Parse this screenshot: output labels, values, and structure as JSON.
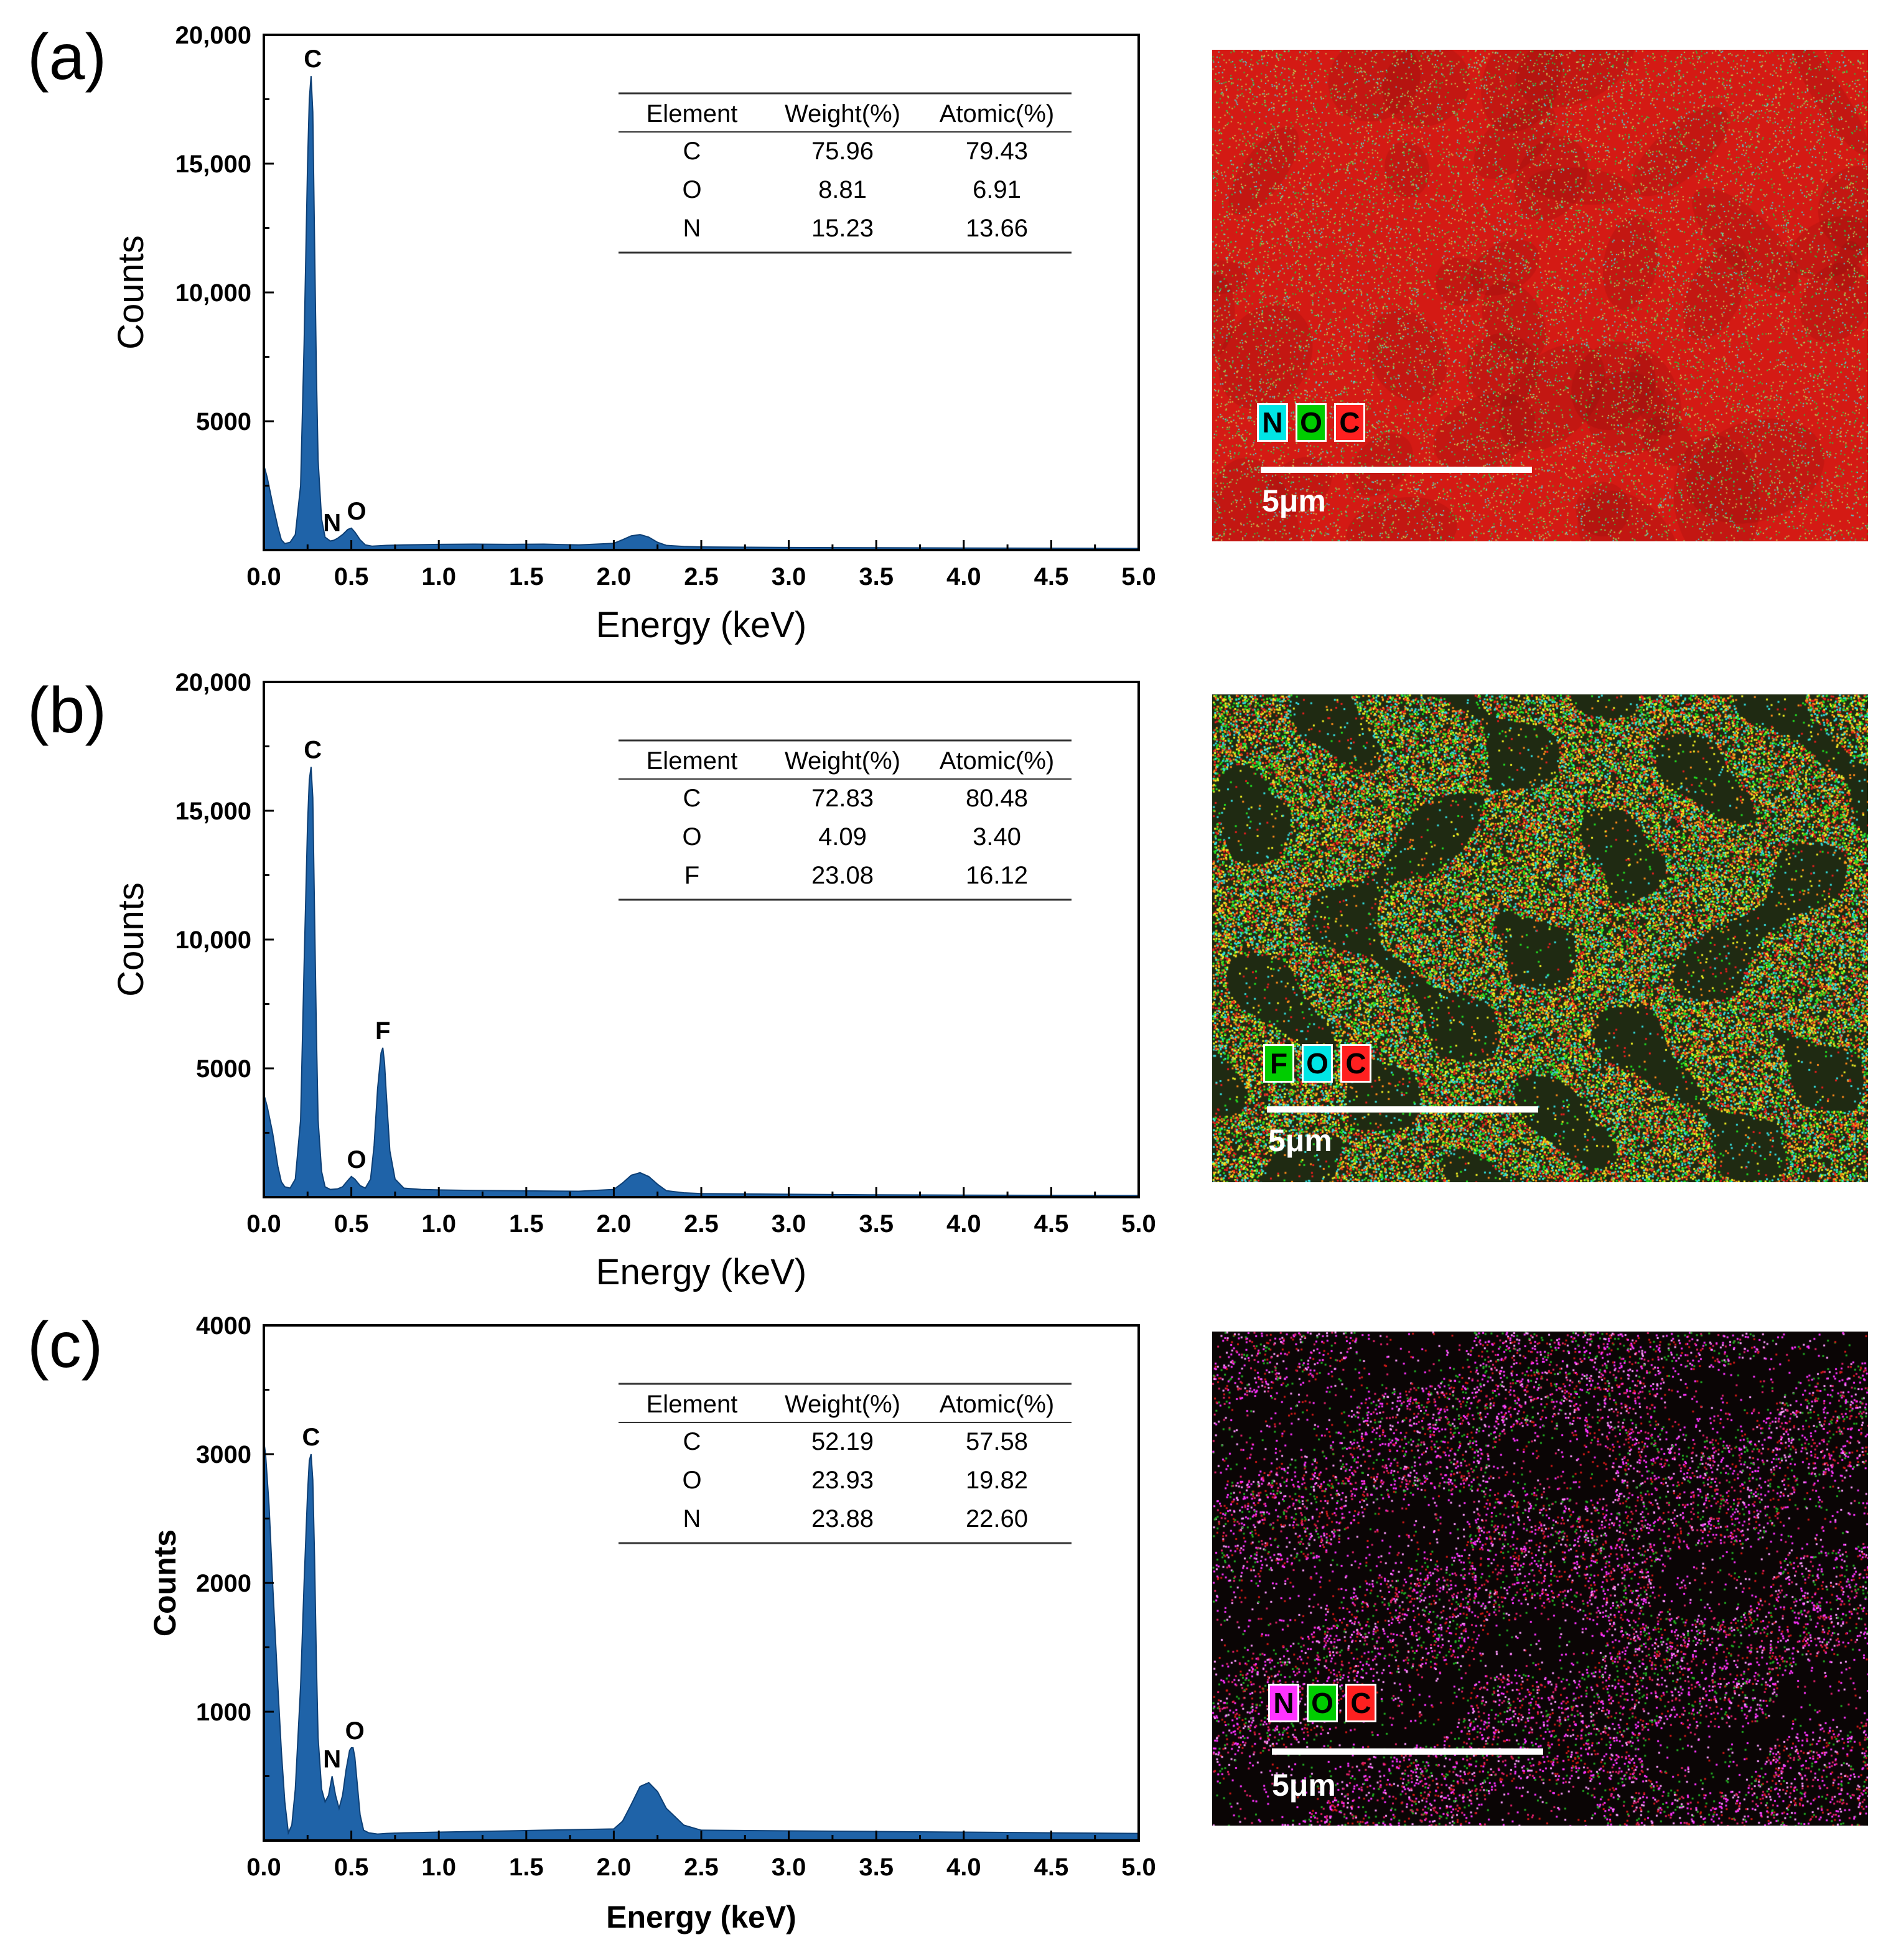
{
  "panels": [
    {
      "label": "(a)",
      "table": {
        "headers": [
          "Element",
          "Weight(%)",
          "Atomic(%)"
        ],
        "rows": [
          [
            "C",
            "75.96",
            "79.43"
          ],
          [
            "O",
            "8.81",
            "6.91"
          ],
          [
            "N",
            "15.23",
            "13.66"
          ]
        ]
      },
      "map": {
        "legend": [
          {
            "text": "N",
            "color": "#00e5e5"
          },
          {
            "text": "O",
            "color": "#00cc00"
          },
          {
            "text": "C",
            "color": "#ff2020"
          }
        ],
        "scale_label": "5μm",
        "style": "dense-red"
      }
    },
    {
      "label": "(b)",
      "table": {
        "headers": [
          "Element",
          "Weight(%)",
          "Atomic(%)"
        ],
        "rows": [
          [
            "C",
            "72.83",
            "80.48"
          ],
          [
            "O",
            "4.09",
            "3.40"
          ],
          [
            "F",
            "23.08",
            "16.12"
          ]
        ]
      },
      "map": {
        "legend": [
          {
            "text": "F",
            "color": "#00cc00"
          },
          {
            "text": "O",
            "color": "#00e5e5"
          },
          {
            "text": "C",
            "color": "#ff2020"
          }
        ],
        "scale_label": "5μm",
        "style": "porous-multicolor"
      }
    },
    {
      "label": "(c)",
      "table": {
        "headers": [
          "Element",
          "Weight(%)",
          "Atomic(%)"
        ],
        "rows": [
          [
            "C",
            "52.19",
            "57.58"
          ],
          [
            "O",
            "23.93",
            "19.82"
          ],
          [
            "N",
            "23.88",
            "22.60"
          ]
        ]
      },
      "map": {
        "legend": [
          {
            "text": "N",
            "color": "#ff33ff"
          },
          {
            "text": "O",
            "color": "#00cc00"
          },
          {
            "text": "C",
            "color": "#ff2020"
          }
        ],
        "scale_label": "5μm",
        "style": "sparse-magenta"
      }
    }
  ],
  "chart_data": [
    {
      "type": "area",
      "title": "",
      "xlabel": "Energy (keV)",
      "ylabel": "Counts",
      "xlim": [
        0,
        5
      ],
      "ylim": [
        0,
        20000
      ],
      "xticks": [
        "0.0",
        "0.5",
        "1.0",
        "1.5",
        "2.0",
        "2.5",
        "3.0",
        "3.5",
        "4.0",
        "4.5",
        "5.0"
      ],
      "yticks": [
        {
          "value": 5000,
          "label": "5000"
        },
        {
          "value": 10000,
          "label": "10,000"
        },
        {
          "value": 15000,
          "label": "15,000"
        },
        {
          "value": 20000,
          "label": "20,000"
        }
      ],
      "fill_color": "#1f63a8",
      "x": [
        0.0,
        0.02,
        0.05,
        0.08,
        0.1,
        0.12,
        0.15,
        0.18,
        0.21,
        0.23,
        0.25,
        0.26,
        0.27,
        0.28,
        0.29,
        0.3,
        0.31,
        0.33,
        0.35,
        0.38,
        0.4,
        0.42,
        0.45,
        0.48,
        0.5,
        0.52,
        0.55,
        0.58,
        0.62,
        0.7,
        0.8,
        1.0,
        1.2,
        1.4,
        1.6,
        1.8,
        2.0,
        2.05,
        2.1,
        2.15,
        2.2,
        2.25,
        2.3,
        2.4,
        2.5,
        3.0,
        3.5,
        4.0,
        4.5,
        5.0
      ],
      "y": [
        3300,
        2800,
        1800,
        900,
        400,
        250,
        300,
        600,
        2500,
        8000,
        15000,
        17500,
        18400,
        17000,
        12000,
        7000,
        3500,
        1200,
        500,
        350,
        380,
        450,
        600,
        800,
        850,
        700,
        400,
        200,
        150,
        180,
        200,
        220,
        230,
        220,
        230,
        200,
        260,
        400,
        550,
        600,
        500,
        300,
        180,
        140,
        120,
        100,
        90,
        80,
        70,
        60
      ],
      "peak_labels": [
        {
          "text": "C",
          "x": 0.28,
          "y": 18400
        },
        {
          "text": "N",
          "x": 0.39,
          "y": 400
        },
        {
          "text": "O",
          "x": 0.53,
          "y": 850
        }
      ]
    },
    {
      "type": "area",
      "title": "",
      "xlabel": "Energy (keV)",
      "ylabel": "Counts",
      "xlim": [
        0,
        5
      ],
      "ylim": [
        0,
        20000
      ],
      "xticks": [
        "0.0",
        "0.5",
        "1.0",
        "1.5",
        "2.0",
        "2.5",
        "3.0",
        "3.5",
        "4.0",
        "4.5",
        "5.0"
      ],
      "yticks": [
        {
          "value": 5000,
          "label": "5000"
        },
        {
          "value": 10000,
          "label": "10,000"
        },
        {
          "value": 15000,
          "label": "15,000"
        },
        {
          "value": 20000,
          "label": "20,000"
        }
      ],
      "fill_color": "#1f63a8",
      "x": [
        0.0,
        0.02,
        0.05,
        0.08,
        0.1,
        0.12,
        0.15,
        0.18,
        0.21,
        0.23,
        0.25,
        0.26,
        0.27,
        0.28,
        0.29,
        0.3,
        0.31,
        0.33,
        0.35,
        0.38,
        0.42,
        0.45,
        0.48,
        0.5,
        0.52,
        0.55,
        0.58,
        0.61,
        0.63,
        0.65,
        0.67,
        0.68,
        0.69,
        0.7,
        0.72,
        0.75,
        0.8,
        0.9,
        1.0,
        1.2,
        1.4,
        1.6,
        1.8,
        2.0,
        2.05,
        2.1,
        2.15,
        2.2,
        2.25,
        2.3,
        2.4,
        2.5,
        3.0,
        3.5,
        4.0,
        4.5,
        5.0
      ],
      "y": [
        4000,
        3500,
        2500,
        1200,
        600,
        400,
        350,
        700,
        3000,
        9000,
        14500,
        16200,
        16700,
        15500,
        11000,
        6500,
        3000,
        1000,
        400,
        300,
        320,
        400,
        650,
        800,
        700,
        450,
        350,
        700,
        2000,
        4200,
        5600,
        5800,
        5200,
        4000,
        1800,
        700,
        350,
        300,
        280,
        260,
        250,
        240,
        230,
        300,
        550,
        850,
        950,
        800,
        500,
        250,
        170,
        140,
        110,
        90,
        80,
        70,
        60
      ],
      "peak_labels": [
        {
          "text": "C",
          "x": 0.28,
          "y": 16700
        },
        {
          "text": "O",
          "x": 0.53,
          "y": 800
        },
        {
          "text": "F",
          "x": 0.68,
          "y": 5800
        }
      ]
    },
    {
      "type": "area",
      "title": "",
      "xlabel": "Energy (keV)",
      "ylabel": "Counts",
      "xlim": [
        0,
        5
      ],
      "ylim": [
        0,
        4000
      ],
      "xticks": [
        "0.0",
        "0.5",
        "1.0",
        "1.5",
        "2.0",
        "2.5",
        "3.0",
        "3.5",
        "4.0",
        "4.5",
        "5.0"
      ],
      "yticks": [
        {
          "value": 1000,
          "label": "1000"
        },
        {
          "value": 2000,
          "label": "2000"
        },
        {
          "value": 3000,
          "label": "3000"
        },
        {
          "value": 4000,
          "label": "4000"
        }
      ],
      "fill_color": "#1f63a8",
      "x": [
        0.0,
        0.01,
        0.03,
        0.05,
        0.08,
        0.1,
        0.12,
        0.14,
        0.16,
        0.18,
        0.21,
        0.23,
        0.25,
        0.26,
        0.27,
        0.28,
        0.29,
        0.3,
        0.31,
        0.33,
        0.35,
        0.37,
        0.39,
        0.41,
        0.43,
        0.45,
        0.47,
        0.49,
        0.5,
        0.51,
        0.52,
        0.53,
        0.55,
        0.57,
        0.6,
        0.65,
        0.7,
        0.8,
        1.0,
        1.2,
        1.4,
        1.6,
        1.8,
        2.0,
        2.05,
        2.1,
        2.15,
        2.2,
        2.25,
        2.3,
        2.4,
        2.5,
        3.0,
        3.5,
        4.0,
        4.5,
        5.0
      ],
      "y": [
        3100,
        3000,
        2600,
        2000,
        1200,
        700,
        300,
        60,
        120,
        400,
        1200,
        2000,
        2700,
        2950,
        3000,
        2800,
        2200,
        1400,
        800,
        400,
        300,
        350,
        500,
        350,
        250,
        350,
        550,
        700,
        720,
        720,
        650,
        500,
        200,
        80,
        60,
        50,
        55,
        60,
        65,
        70,
        75,
        80,
        85,
        90,
        150,
        280,
        420,
        450,
        380,
        250,
        120,
        80,
        75,
        70,
        65,
        60,
        55
      ],
      "peak_labels": [
        {
          "text": "C",
          "x": 0.27,
          "y": 3000
        },
        {
          "text": "N",
          "x": 0.39,
          "y": 500
        },
        {
          "text": "O",
          "x": 0.52,
          "y": 720
        }
      ]
    }
  ]
}
